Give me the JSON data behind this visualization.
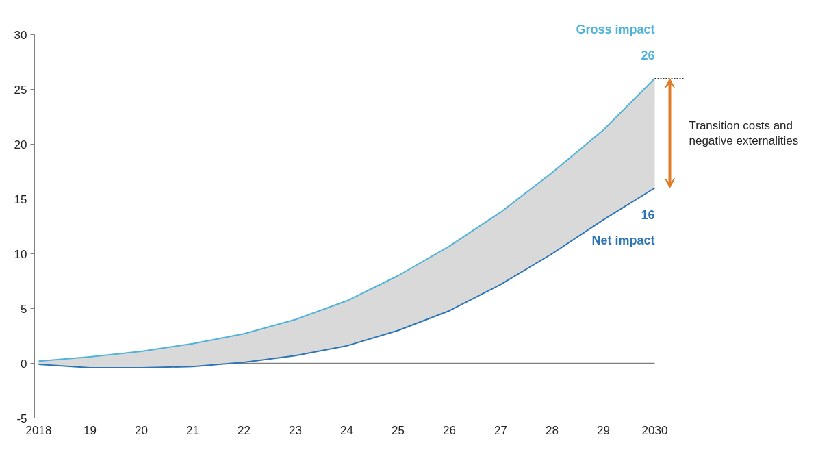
{
  "chart_data": {
    "type": "line",
    "x": [
      2018,
      2019,
      2020,
      2021,
      2022,
      2023,
      2024,
      2025,
      2026,
      2027,
      2028,
      2029,
      2030
    ],
    "series": [
      {
        "name": "Gross impact",
        "color": "#4fb3d9",
        "values": [
          0.2,
          0.6,
          1.1,
          1.8,
          2.7,
          4.0,
          5.7,
          8.0,
          10.7,
          13.8,
          17.4,
          21.3,
          26
        ],
        "value_labels": [
          null,
          null,
          null,
          null,
          null,
          null,
          null,
          null,
          null,
          null,
          null,
          null,
          "26"
        ],
        "lower": [
          -0.1,
          -0.4,
          -0.4,
          -0.3,
          0.1,
          0.7,
          1.6,
          3.0,
          4.8,
          7.2,
          10.0,
          13.1,
          16
        ],
        "upper": [
          0.2,
          0.6,
          1.1,
          1.8,
          2.7,
          4.0,
          5.7,
          8.0,
          10.7,
          13.8,
          17.4,
          21.3,
          26
        ]
      },
      {
        "name": "Net impact",
        "color": "#2e75b6",
        "values": [
          -0.1,
          -0.4,
          -0.4,
          -0.3,
          0.1,
          0.7,
          1.6,
          3.0,
          4.8,
          7.2,
          10.0,
          13.1,
          16
        ],
        "value_labels": [
          null,
          null,
          null,
          null,
          null,
          null,
          null,
          null,
          null,
          null,
          null,
          null,
          "16"
        ]
      }
    ],
    "annotations": [
      "Transition costs and negative externalities"
    ],
    "ref_lines": [
      {
        "axis": "y",
        "value": 0,
        "color": "#7f7f7f"
      }
    ],
    "xlim": [
      2018,
      2030
    ],
    "ylim": [
      -5,
      30
    ],
    "xticks": [
      2018,
      {
        "value": 2019,
        "label": "19"
      },
      {
        "value": 2020,
        "label": "20"
      },
      {
        "value": 2021,
        "label": "21"
      },
      {
        "value": 2022,
        "label": "22"
      },
      {
        "value": 2023,
        "label": "23"
      },
      {
        "value": 2024,
        "label": "24"
      },
      {
        "value": 2025,
        "label": "25"
      },
      {
        "value": 2026,
        "label": "26"
      },
      {
        "value": 2027,
        "label": "27"
      },
      {
        "value": 2028,
        "label": "28"
      },
      {
        "value": 2029,
        "label": "29"
      },
      2030
    ],
    "yticks": [
      -5,
      0,
      5,
      10,
      15,
      20,
      25,
      30
    ],
    "grid": false,
    "legend": false,
    "marker": "none",
    "line_style": "solid"
  }
}
